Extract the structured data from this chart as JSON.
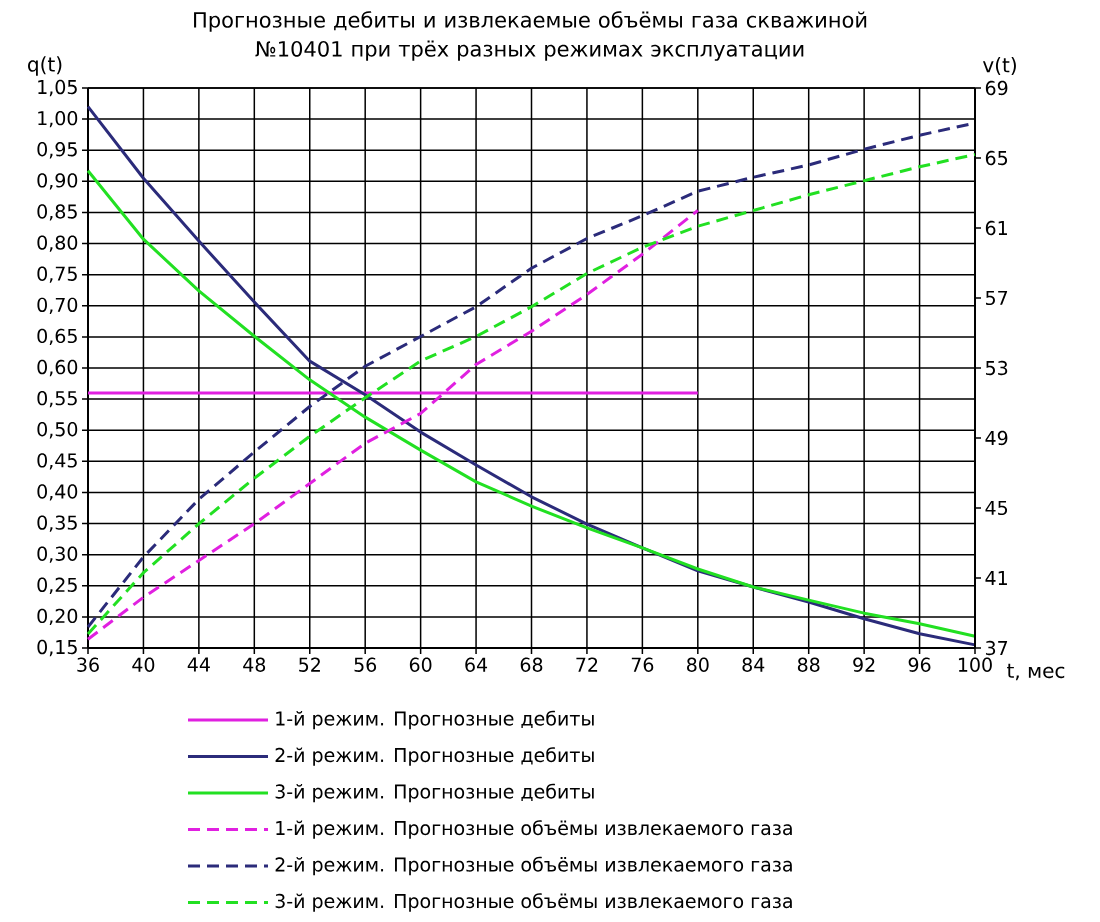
{
  "chart_data": {
    "type": "line",
    "title": "Прогнозные дебиты и извлекаемые объёмы газа скважиной №10401 при трёх разных режимах эксплуатации",
    "xlabel": "t, мес",
    "ylabel": "q(t)",
    "y2label": "v(t)",
    "x": [
      36,
      40,
      44,
      48,
      52,
      56,
      60,
      64,
      68,
      72,
      76,
      80,
      84,
      88,
      92,
      96,
      100
    ],
    "xlim": [
      36,
      100
    ],
    "xticks": [
      36,
      40,
      44,
      48,
      52,
      56,
      60,
      64,
      68,
      72,
      76,
      80,
      84,
      88,
      92,
      96,
      100
    ],
    "ylim": [
      0.15,
      1.05
    ],
    "yticks": [
      {
        "value": 0.15,
        "label": "0,15"
      },
      {
        "value": 0.2,
        "label": "0,20"
      },
      {
        "value": 0.25,
        "label": "0,25"
      },
      {
        "value": 0.3,
        "label": "0,30"
      },
      {
        "value": 0.35,
        "label": "0,35"
      },
      {
        "value": 0.4,
        "label": "0,40"
      },
      {
        "value": 0.45,
        "label": "0,45"
      },
      {
        "value": 0.5,
        "label": "0,50"
      },
      {
        "value": 0.55,
        "label": "0,55"
      },
      {
        "value": 0.6,
        "label": "0,60"
      },
      {
        "value": 0.65,
        "label": "0,65"
      },
      {
        "value": 0.7,
        "label": "0,70"
      },
      {
        "value": 0.75,
        "label": "0,75"
      },
      {
        "value": 0.8,
        "label": "0,80"
      },
      {
        "value": 0.85,
        "label": "0,85"
      },
      {
        "value": 0.9,
        "label": "0,90"
      },
      {
        "value": 0.95,
        "label": "0,95"
      },
      {
        "value": 1.0,
        "label": "1,00"
      },
      {
        "value": 1.05,
        "label": "1,05"
      }
    ],
    "y2lim": [
      37,
      69
    ],
    "y2ticks": [
      37,
      41,
      45,
      49,
      53,
      57,
      61,
      65,
      69
    ],
    "grid": true,
    "legend": "bottom",
    "series": [
      {
        "name": "1-й режим. Прогнозные дебиты",
        "color": "#e020e0",
        "line_style": "solid",
        "x": [
          36,
          40,
          44,
          48,
          52,
          56,
          60,
          64,
          68,
          72,
          76,
          80
        ],
        "values": [
          0.56,
          0.56,
          0.56,
          0.56,
          0.56,
          0.56,
          0.56,
          0.56,
          0.56,
          0.56,
          0.56,
          0.56
        ]
      },
      {
        "name": "2-й режим. Прогнозные дебиты",
        "color": "#2b2b7a",
        "line_style": "solid",
        "values": [
          1.02,
          0.905,
          0.804,
          0.706,
          0.611,
          0.557,
          0.497,
          0.444,
          0.393,
          0.349,
          0.311,
          0.274,
          0.248,
          0.224,
          0.197,
          0.173,
          0.155
        ]
      },
      {
        "name": "3-й режим. Прогнозные дебиты",
        "color": "#22e022",
        "line_style": "solid",
        "values": [
          0.917,
          0.807,
          0.724,
          0.651,
          0.581,
          0.521,
          0.468,
          0.417,
          0.378,
          0.343,
          0.311,
          0.277,
          0.248,
          0.227,
          0.206,
          0.189,
          0.169
        ]
      },
      {
        "name": "1-й режим. Прогнозные объёмы извлекаемого газа",
        "color": "#e020e0",
        "line_style": "dashed",
        "axis": "y2",
        "x": [
          36,
          40,
          44,
          48,
          52,
          56,
          60,
          64,
          68,
          72,
          76,
          80
        ],
        "values": [
          37.5,
          39.9,
          42.0,
          44.1,
          46.4,
          48.7,
          50.4,
          53.2,
          55.1,
          57.2,
          59.5,
          62.0
        ]
      },
      {
        "name": "2-й режим. Прогнозные объёмы извлекаемого газа",
        "color": "#2b2b7a",
        "line_style": "dashed",
        "axis": "y2",
        "values": [
          38.2,
          42.2,
          45.5,
          48.2,
          50.8,
          53.1,
          54.8,
          56.5,
          58.7,
          60.4,
          61.7,
          63.1,
          63.9,
          64.6,
          65.5,
          66.3,
          67.0
        ]
      },
      {
        "name": "3-й режим. Прогнозные объёмы извлекаемого газа",
        "color": "#22e022",
        "line_style": "dashed",
        "axis": "y2",
        "values": [
          37.8,
          41.3,
          44.1,
          46.7,
          49.1,
          51.3,
          53.4,
          54.8,
          56.5,
          58.4,
          59.9,
          61.1,
          62.0,
          62.9,
          63.7,
          64.5,
          65.2
        ]
      }
    ]
  }
}
